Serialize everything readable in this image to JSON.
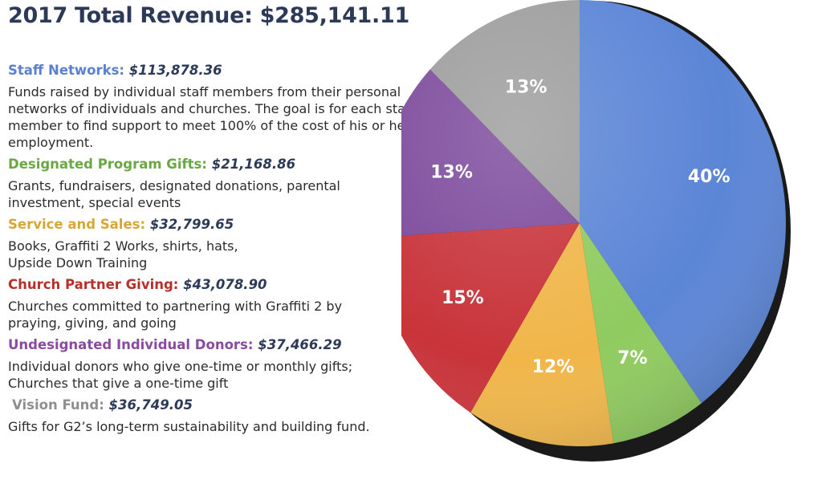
{
  "title": "2017 Total Revenue: $285,141.11",
  "items": [
    {
      "name": "Staff Networks:",
      "amount": "$113,878.36",
      "color": "#5b80d0",
      "desc": "Funds raised by individual staff members from their personal networks of individuals and churches. The goal is for each staff member to find support to meet 100% of the cost of his or her employment."
    },
    {
      "name": "Designated Program Gifts:",
      "amount": "$21,168.86",
      "color": "#6aa844",
      "desc": "Grants, fundraisers, designated donations, parental investment, special events"
    },
    {
      "name": "Service and Sales:",
      "amount": "$32,799.65",
      "color": "#d7a637",
      "desc": "Books, Graffiti 2 Works, shirts, hats, Upside Down Training"
    },
    {
      "name": "Church Partner Giving:",
      "amount": "$43,078.90",
      "color": "#b8302a",
      "desc": "Churches committed to partnering with Graffiti 2 by praying, giving, and going"
    },
    {
      "name": "Undesignated Individual Donors:",
      "amount": "$37,466.29",
      "color": "#8a4aa0",
      "desc": "Individual donors who give one-time or monthly gifts; Churches that give a one-time gift"
    },
    {
      "name": "Vision Fund:",
      "amount": "$36,749.05",
      "color": "#8f8f8f",
      "desc": "Gifts for G2’s long-term sustainability and building fund."
    }
  ],
  "chart_data": {
    "type": "pie",
    "slices": [
      {
        "label": "40%",
        "value": 113878.36,
        "color": "#5b85d6"
      },
      {
        "label": "7%",
        "value": 21168.86,
        "color": "#8fcb5f"
      },
      {
        "label": "12%",
        "value": 32799.65,
        "color": "#f0b64a"
      },
      {
        "label": "15%",
        "value": 43078.9,
        "color": "#c8343a"
      },
      {
        "label": "13%",
        "value": 37466.29,
        "color": "#7c4a9c"
      },
      {
        "label": "13%",
        "value": 36749.05,
        "color": "#9d9d9d"
      }
    ]
  }
}
